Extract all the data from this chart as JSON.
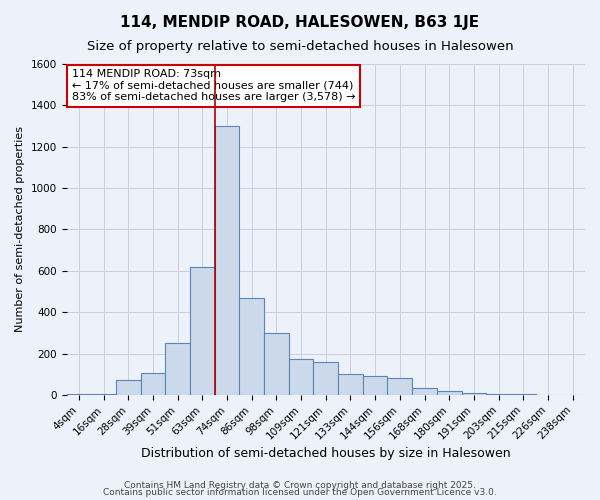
{
  "title": "114, MENDIP ROAD, HALESOWEN, B63 1JE",
  "subtitle": "Size of property relative to semi-detached houses in Halesowen",
  "xlabel": "Distribution of semi-detached houses by size in Halesowen",
  "ylabel": "Number of semi-detached properties",
  "categories": [
    "4sqm",
    "16sqm",
    "28sqm",
    "39sqm",
    "51sqm",
    "63sqm",
    "74sqm",
    "86sqm",
    "98sqm",
    "109sqm",
    "121sqm",
    "133sqm",
    "144sqm",
    "156sqm",
    "168sqm",
    "180sqm",
    "191sqm",
    "203sqm",
    "215sqm",
    "226sqm",
    "238sqm"
  ],
  "values": [
    2,
    5,
    70,
    105,
    250,
    620,
    1300,
    470,
    300,
    175,
    160,
    100,
    90,
    80,
    35,
    20,
    10,
    5,
    2,
    1,
    0
  ],
  "bar_color": "#ccd9ea",
  "bar_edge_color": "#5b84b8",
  "property_line_color": "#aa0000",
  "annotation_text": "114 MENDIP ROAD: 73sqm\n← 17% of semi-detached houses are smaller (744)\n83% of semi-detached houses are larger (3,578) →",
  "annotation_box_color": "#ffffff",
  "annotation_box_edge": "#cc0000",
  "ylim": [
    0,
    1600
  ],
  "yticks": [
    0,
    200,
    400,
    600,
    800,
    1000,
    1200,
    1400,
    1600
  ],
  "footer1": "Contains HM Land Registry data © Crown copyright and database right 2025.",
  "footer2": "Contains public sector information licensed under the Open Government Licence v3.0.",
  "bg_color": "#edf1f9",
  "grid_color": "#c8d0e0",
  "title_fontsize": 11,
  "subtitle_fontsize": 9.5,
  "xlabel_fontsize": 9,
  "ylabel_fontsize": 8,
  "tick_fontsize": 7.5,
  "annotation_fontsize": 8,
  "footer_fontsize": 6.5
}
